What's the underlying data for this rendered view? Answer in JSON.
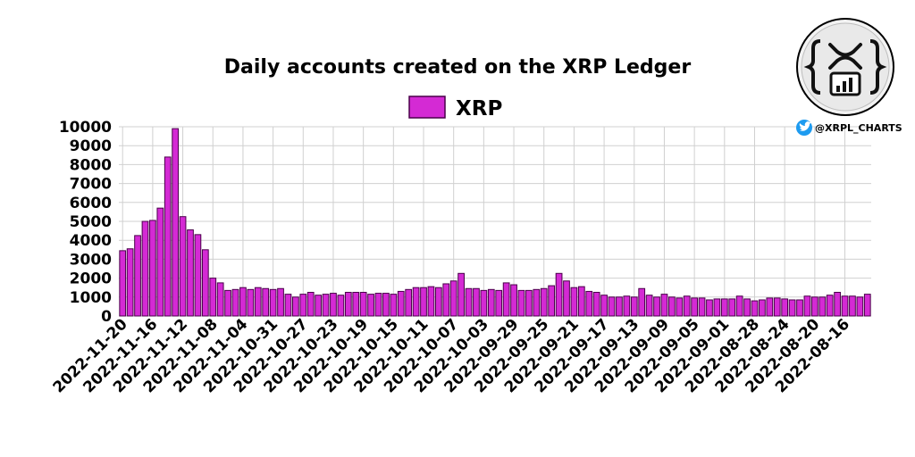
{
  "brand": {
    "handle": "@XRPL_CHARTS",
    "logo_icon": "xrpl-charts-logo",
    "social_icon": "twitter-bird-icon",
    "social_color": "#1d9bf0"
  },
  "chart_data": {
    "type": "bar",
    "title": "Daily accounts created on the XRP Ledger",
    "xlabel": "",
    "ylabel": "",
    "ylim": [
      0,
      10000
    ],
    "yticks": [
      "0",
      "1000",
      "2000",
      "3000",
      "4000",
      "5000",
      "6000",
      "7000",
      "8000",
      "9000",
      "10000"
    ],
    "grid": true,
    "legend_position": "top-center",
    "x_order": "descending dates",
    "xticks": [
      "2022-11-20",
      "2022-11-16",
      "2022-11-12",
      "2022-11-08",
      "2022-11-04",
      "2022-10-31",
      "2022-10-27",
      "2022-10-23",
      "2022-10-19",
      "2022-10-15",
      "2022-10-11",
      "2022-10-07",
      "2022-10-03",
      "2022-09-29",
      "2022-09-25",
      "2022-09-21",
      "2022-09-17",
      "2022-09-13",
      "2022-09-09",
      "2022-09-05",
      "2022-09-01",
      "2022-08-28",
      "2022-08-24",
      "2022-08-20",
      "2022-08-16"
    ],
    "x_start": "2022-11-20",
    "x_end": "2022-08-13",
    "series": [
      {
        "name": "XRP",
        "color": "#d42ad4",
        "edge_color": "#4a004a",
        "values": [
          3450,
          3550,
          4250,
          5000,
          5050,
          5700,
          8400,
          9900,
          5250,
          4550,
          4300,
          3500,
          2000,
          1750,
          1350,
          1400,
          1500,
          1400,
          1500,
          1450,
          1400,
          1450,
          1150,
          1000,
          1150,
          1250,
          1100,
          1150,
          1200,
          1100,
          1250,
          1250,
          1250,
          1150,
          1200,
          1200,
          1150,
          1300,
          1400,
          1500,
          1500,
          1550,
          1500,
          1700,
          1850,
          2250,
          1450,
          1450,
          1350,
          1400,
          1350,
          1750,
          1650,
          1350,
          1350,
          1400,
          1450,
          1600,
          2250,
          1850,
          1500,
          1550,
          1300,
          1250,
          1100,
          1000,
          1000,
          1050,
          1000,
          1450,
          1100,
          1000,
          1150,
          1000,
          950,
          1050,
          950,
          950,
          850,
          900,
          900,
          900,
          1050,
          900,
          800,
          850,
          950,
          950,
          900,
          850,
          850,
          1050,
          1000,
          1000,
          1100,
          1250,
          1050,
          1050,
          1000,
          1150
        ]
      }
    ]
  }
}
